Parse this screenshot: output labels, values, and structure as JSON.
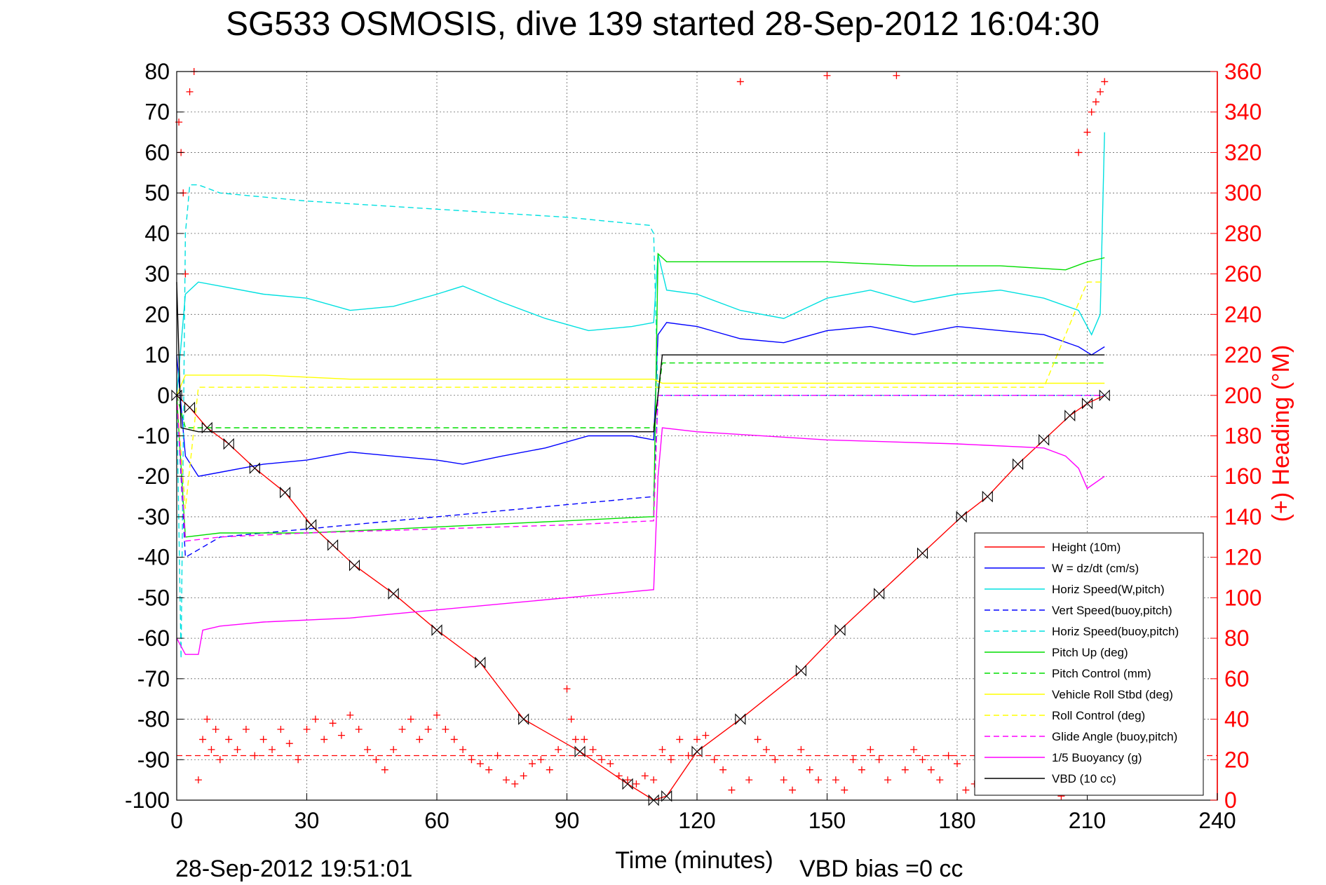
{
  "chart_data": {
    "type": "line",
    "title": "SG533 OSMOSIS, dive 139 started 28-Sep-2012 16:04:30",
    "xlabel": "Time (minutes)",
    "ylabel": "",
    "ylabel_right": "(+) Heading (°M)",
    "xlim": [
      0,
      240
    ],
    "ylim": [
      -100,
      80
    ],
    "ylim_right": [
      0,
      360
    ],
    "x_ticks": [
      "0",
      "30",
      "60",
      "90",
      "120",
      "150",
      "180",
      "210",
      "240"
    ],
    "y_ticks": [
      "80",
      "70",
      "60",
      "50",
      "40",
      "30",
      "20",
      "10",
      "0",
      "-10",
      "-20",
      "-30",
      "-40",
      "-50",
      "-60",
      "-70",
      "-80",
      "-90",
      "-100"
    ],
    "y_ticks_right": [
      "360",
      "340",
      "320",
      "300",
      "280",
      "260",
      "240",
      "220",
      "200",
      "180",
      "160",
      "140",
      "120",
      "100",
      "80",
      "60",
      "40",
      "20",
      "0"
    ],
    "grid": true,
    "legend_position": "bottom-right",
    "footer_left": "28-Sep-2012 19:51:01",
    "footer_right": "VBD bias =0 cc",
    "series": [
      {
        "name": "Height (10m)",
        "color": "#ff0000",
        "dash": "solid",
        "x": [
          0,
          3,
          7,
          12,
          18,
          25,
          31,
          36,
          41,
          50,
          60,
          70,
          80,
          93,
          104,
          110,
          113,
          120,
          130,
          144,
          153,
          162,
          172,
          181,
          187,
          194,
          200,
          206,
          210,
          214
        ],
        "y": [
          0,
          -3,
          -8,
          -12,
          -18,
          -24,
          -32,
          -37,
          -42,
          -49,
          -58,
          -66,
          -80,
          -88,
          -96,
          -100,
          -99,
          -88,
          -80,
          -68,
          -58,
          -49,
          -39,
          -30,
          -25,
          -17,
          -11,
          -5,
          -2,
          0
        ]
      },
      {
        "name": "W = dz/dt (cm/s)",
        "color": "#0000ff",
        "dash": "solid",
        "x": [
          0,
          2,
          5,
          10,
          15,
          20,
          30,
          40,
          50,
          60,
          66,
          75,
          85,
          95,
          105,
          110,
          111,
          113,
          120,
          130,
          140,
          150,
          160,
          170,
          180,
          190,
          200,
          208,
          211,
          214
        ],
        "y": [
          10,
          -15,
          -20,
          -19,
          -18,
          -17,
          -16,
          -14,
          -15,
          -16,
          -17,
          -15,
          -13,
          -10,
          -10,
          -11,
          15,
          18,
          17,
          14,
          13,
          16,
          17,
          15,
          17,
          16,
          15,
          12,
          10,
          12
        ]
      },
      {
        "name": "Horiz Speed(W,pitch)",
        "color": "#00e0e0",
        "dash": "solid",
        "x": [
          0,
          2,
          5,
          10,
          20,
          30,
          40,
          50,
          60,
          66,
          75,
          85,
          95,
          105,
          110,
          111,
          113,
          120,
          130,
          140,
          150,
          160,
          170,
          180,
          190,
          200,
          208,
          211,
          213,
          214
        ],
        "y": [
          0,
          25,
          28,
          27,
          25,
          24,
          21,
          22,
          25,
          27,
          23,
          19,
          16,
          17,
          18,
          35,
          26,
          25,
          21,
          19,
          24,
          26,
          23,
          25,
          26,
          24,
          21,
          15,
          20,
          65
        ]
      },
      {
        "name": "Vert Speed(buoy,pitch)",
        "color": "#0000ff",
        "dash": "dashed",
        "x": [
          0,
          2,
          10,
          30,
          50,
          70,
          90,
          100,
          110,
          111,
          112,
          214
        ],
        "y": [
          0,
          -40,
          -35,
          -33,
          -31,
          -29,
          -27,
          -26,
          -25,
          0,
          0,
          0
        ]
      },
      {
        "name": "Horiz Speed(buoy,pitch)",
        "color": "#00e0e0",
        "dash": "dashed",
        "x": [
          0,
          1,
          2,
          3,
          5,
          10,
          30,
          60,
          90,
          109,
          110,
          111,
          112,
          214
        ],
        "y": [
          0,
          -65,
          40,
          52,
          52,
          50,
          48,
          46,
          44,
          42,
          40,
          0,
          0,
          0
        ]
      },
      {
        "name": "Pitch Up (deg)",
        "color": "#00dd00",
        "dash": "solid",
        "x": [
          0,
          2,
          10,
          30,
          50,
          70,
          90,
          109,
          110,
          111,
          113,
          130,
          150,
          170,
          190,
          205,
          210,
          214
        ],
        "y": [
          0,
          -35,
          -34,
          -34,
          -33,
          -32,
          -31,
          -30,
          -30,
          35,
          33,
          33,
          33,
          32,
          32,
          31,
          33,
          34
        ]
      },
      {
        "name": "Pitch Control (mm)",
        "color": "#00dd00",
        "dash": "dashed",
        "x": [
          0,
          2,
          5,
          30,
          60,
          90,
          109,
          110,
          112,
          120,
          150,
          180,
          210,
          214
        ],
        "y": [
          0,
          -8,
          -8,
          -8,
          -8,
          -8,
          -8,
          -8,
          8,
          8,
          8,
          8,
          8,
          8
        ]
      },
      {
        "name": "Vehicle Roll Stbd (deg)",
        "color": "#ffff00",
        "dash": "solid",
        "x": [
          0,
          2,
          5,
          20,
          40,
          60,
          80,
          100,
          110,
          112,
          130,
          150,
          170,
          190,
          210,
          214
        ],
        "y": [
          0,
          5,
          5,
          5,
          4,
          4,
          4,
          4,
          4,
          3,
          3,
          3,
          3,
          3,
          3,
          3
        ]
      },
      {
        "name": "Roll Control (deg)",
        "color": "#ffff00",
        "dash": "dashed",
        "x": [
          0,
          2,
          5,
          30,
          60,
          90,
          110,
          112,
          150,
          200,
          210,
          214
        ],
        "y": [
          0,
          -28,
          2,
          2,
          2,
          2,
          2,
          2,
          2,
          2,
          28,
          28
        ]
      },
      {
        "name": "Glide Angle (buoy,pitch)",
        "color": "#ff00ff",
        "dash": "dashed",
        "x": [
          0,
          2,
          10,
          30,
          60,
          90,
          110,
          111,
          112,
          214
        ],
        "y": [
          0,
          -36,
          -35,
          -34,
          -33,
          -32,
          -31,
          0,
          0,
          0
        ]
      },
      {
        "name": "1/5 Buoyancy (g)",
        "color": "#ff00ff",
        "dash": "solid",
        "x": [
          0,
          2,
          5,
          6,
          10,
          20,
          40,
          60,
          80,
          100,
          110,
          111,
          112,
          120,
          150,
          180,
          200,
          205,
          208,
          210,
          214
        ],
        "y": [
          -60,
          -64,
          -64,
          -58,
          -57,
          -56,
          -55,
          -53,
          -51,
          -49,
          -48,
          -20,
          -8,
          -9,
          -11,
          -12,
          -13,
          -15,
          -18,
          -23,
          -20
        ]
      },
      {
        "name": "VBD (10 cc)",
        "color": "#000000",
        "dash": "solid",
        "x": [
          0,
          1,
          5,
          20,
          60,
          100,
          110,
          111,
          112,
          150,
          200,
          214
        ],
        "y": [
          28,
          -8,
          -9,
          -9,
          -9,
          -9,
          -9,
          0,
          10,
          10,
          10,
          10
        ]
      }
    ],
    "heading_series": {
      "name": "Heading",
      "color": "#ff0000",
      "marker": "+",
      "axis": "right",
      "x": [
        0.5,
        1,
        1.5,
        2,
        3,
        4,
        5,
        6,
        7,
        8,
        9,
        10,
        12,
        14,
        16,
        18,
        20,
        22,
        24,
        26,
        28,
        30,
        32,
        34,
        36,
        38,
        40,
        42,
        44,
        46,
        48,
        50,
        52,
        54,
        56,
        58,
        60,
        62,
        64,
        66,
        68,
        70,
        72,
        74,
        76,
        78,
        80,
        82,
        84,
        86,
        88,
        90,
        91,
        92,
        94,
        96,
        98,
        100,
        102,
        104,
        106,
        108,
        110,
        112,
        114,
        116,
        118,
        120,
        122,
        124,
        126,
        128,
        130,
        132,
        134,
        136,
        138,
        140,
        142,
        144,
        146,
        148,
        150,
        152,
        154,
        156,
        158,
        160,
        162,
        164,
        166,
        168,
        170,
        172,
        174,
        176,
        178,
        180,
        182,
        184,
        186,
        188,
        190,
        192,
        194,
        196,
        198,
        200,
        202,
        204,
        206,
        208,
        210,
        211,
        212,
        213,
        214
      ],
      "y": [
        335,
        320,
        300,
        260,
        350,
        360,
        10,
        30,
        40,
        25,
        35,
        20,
        30,
        25,
        35,
        22,
        30,
        25,
        35,
        28,
        20,
        35,
        40,
        30,
        38,
        32,
        42,
        35,
        25,
        20,
        15,
        25,
        35,
        40,
        30,
        35,
        42,
        35,
        30,
        25,
        20,
        18,
        15,
        22,
        10,
        8,
        12,
        18,
        20,
        15,
        25,
        55,
        40,
        30,
        30,
        25,
        20,
        18,
        12,
        10,
        8,
        12,
        10,
        25,
        20,
        30,
        22,
        30,
        32,
        20,
        15,
        5,
        355,
        10,
        30,
        25,
        20,
        10,
        5,
        25,
        15,
        10,
        358,
        10,
        5,
        20,
        15,
        25,
        20,
        10,
        358,
        15,
        25,
        20,
        15,
        10,
        22,
        18,
        5,
        8,
        12,
        20,
        15,
        10,
        8,
        12,
        15,
        10,
        5,
        2,
        12,
        320,
        330,
        340,
        345,
        350,
        355
      ]
    }
  }
}
